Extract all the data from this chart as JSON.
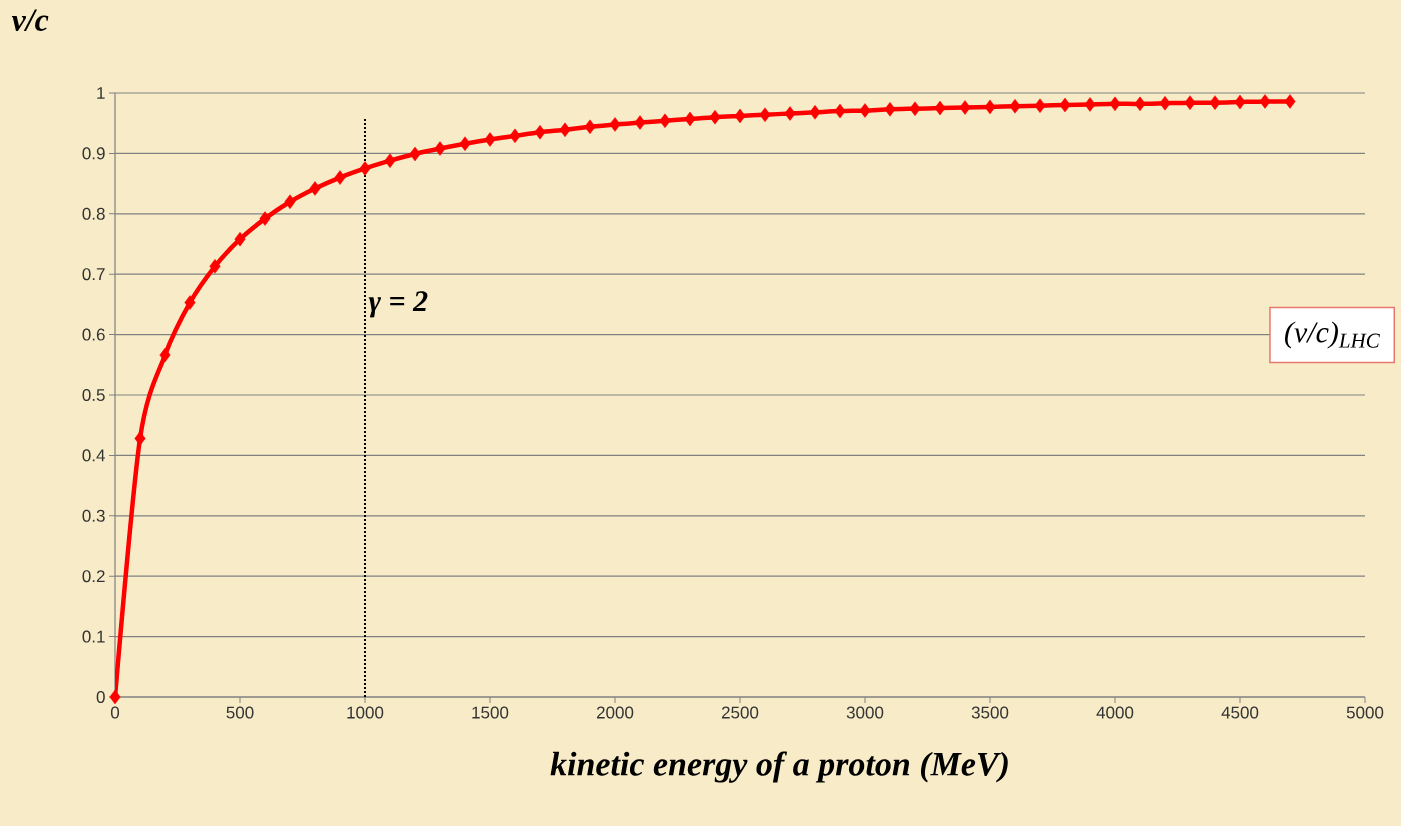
{
  "chart_data": {
    "type": "line",
    "xlabel": "kinetic energy of a proton (MeV)",
    "ylabel": "v/c",
    "x": [
      0,
      100,
      200,
      300,
      400,
      500,
      600,
      700,
      800,
      900,
      1000,
      1100,
      1200,
      1300,
      1400,
      1500,
      1600,
      1700,
      1800,
      1900,
      2000,
      2100,
      2200,
      2300,
      2400,
      2500,
      2600,
      2700,
      2800,
      2900,
      3000,
      3100,
      3200,
      3300,
      3400,
      3500,
      3600,
      3700,
      3800,
      3900,
      4000,
      4100,
      4200,
      4300,
      4400,
      4500,
      4600,
      4700
    ],
    "series": [
      {
        "color": "#ff0000",
        "values": [
          0,
          0.428,
          0.566,
          0.653,
          0.713,
          0.758,
          0.792,
          0.82,
          0.842,
          0.86,
          0.875,
          0.888,
          0.899,
          0.908,
          0.916,
          0.923,
          0.929,
          0.935,
          0.939,
          0.944,
          0.948,
          0.951,
          0.954,
          0.957,
          0.96,
          0.962,
          0.964,
          0.966,
          0.968,
          0.97,
          0.971,
          0.973,
          0.974,
          0.975,
          0.976,
          0.977,
          0.978,
          0.979,
          0.98,
          0.981,
          0.982,
          0.982,
          0.983,
          0.984,
          0.984,
          0.985,
          0.986,
          0.986
        ]
      }
    ],
    "xlim": [
      0,
      5000
    ],
    "xticks": [
      0,
      500,
      1000,
      1500,
      2000,
      2500,
      3000,
      3500,
      4000,
      4500,
      5000
    ],
    "ylim": [
      0,
      1
    ],
    "yticks": [
      0,
      0.1,
      0.2,
      0.3,
      0.4,
      0.5,
      0.6,
      0.7,
      0.8,
      0.9,
      1
    ],
    "grid": "y",
    "marker": "diamond",
    "line_style": "solid",
    "ref_lines": [
      {
        "axis": "x",
        "value": 1000,
        "color": "#000000",
        "line_style": "dotted"
      }
    ],
    "annotations": [
      {
        "text": "γ = 2",
        "x": 1000,
        "y": 0.65
      },
      "(v/c)$_{LHC}$"
    ]
  }
}
